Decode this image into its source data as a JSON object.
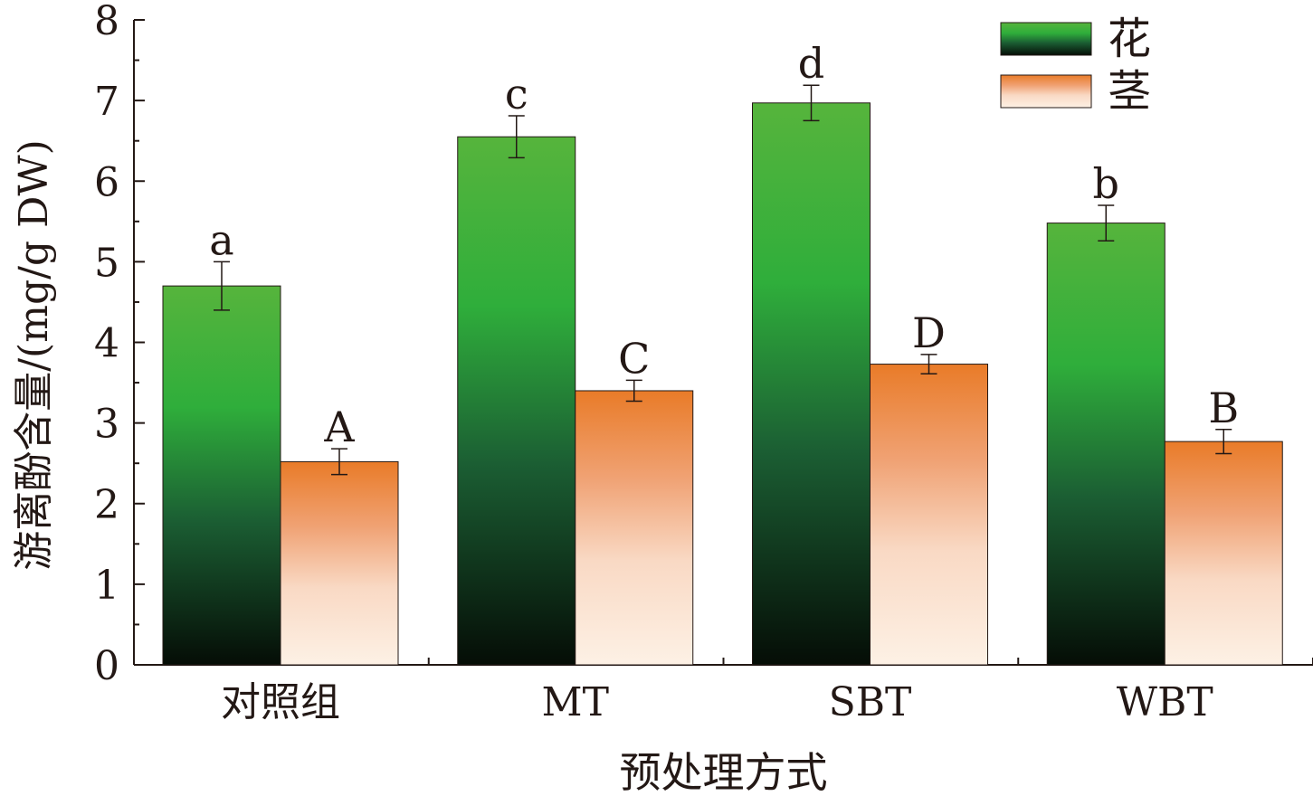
{
  "chart_data": {
    "type": "bar",
    "title": "",
    "xlabel": "预处理方式",
    "ylabel": "游离酚含量/(mg/g DW)",
    "categories": [
      "对照组",
      "MT",
      "SBT",
      "WBT"
    ],
    "ylim": [
      0,
      8
    ],
    "yticks": [
      "0",
      "1",
      "2",
      "3",
      "4",
      "5",
      "6",
      "7",
      "8"
    ],
    "grid": false,
    "legend_position": "top-right",
    "series": [
      {
        "name": "花",
        "values": [
          4.7,
          6.55,
          6.97,
          5.48
        ],
        "errors": [
          0.3,
          0.26,
          0.22,
          0.22
        ],
        "sig_labels": [
          "a",
          "c",
          "d",
          "b"
        ],
        "colors": {
          "top": "#56b43c",
          "mid": "#2fae3b",
          "low": "#1b5e33",
          "bottom": "#050d06"
        }
      },
      {
        "name": "茎",
        "values": [
          2.52,
          3.4,
          3.73,
          2.77
        ],
        "errors": [
          0.16,
          0.13,
          0.12,
          0.15
        ],
        "sig_labels": [
          "A",
          "C",
          "D",
          "B"
        ],
        "colors": {
          "top": "#e97b28",
          "mid": "#f0a274",
          "low": "#f9d9c4",
          "bottom": "#fdf1e5"
        }
      }
    ]
  }
}
